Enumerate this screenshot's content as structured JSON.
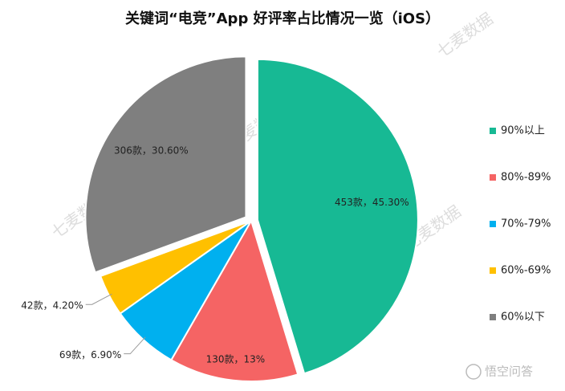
{
  "chart_data": {
    "type": "pie",
    "title": "关键词“电竞”App 好评率占比情况一览（iOS）",
    "categories": [
      "90%以上",
      "80%-89%",
      "70%-79%",
      "60%-69%",
      "60%以下"
    ],
    "values": [
      453,
      130,
      69,
      42,
      306
    ],
    "value_labels": [
      "453款，45.30%",
      "130款，13%",
      "69款，6.90%",
      "42款，4.20%",
      "306款，30.60%"
    ],
    "colors": [
      "#17b994",
      "#f56464",
      "#00b0ef",
      "#ffc000",
      "#7f7f7f"
    ],
    "legend": "right",
    "watermark": "七麦数据",
    "credit": "悟空问答"
  }
}
